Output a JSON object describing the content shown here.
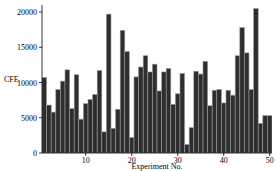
{
  "chart_data": {
    "type": "bar",
    "x_label": "Experiment No.",
    "y_label": "CFE",
    "x": [
      1,
      2,
      3,
      4,
      5,
      6,
      7,
      8,
      9,
      10,
      11,
      12,
      13,
      14,
      15,
      16,
      17,
      18,
      19,
      20,
      21,
      22,
      23,
      24,
      25,
      26,
      27,
      28,
      29,
      30,
      31,
      32,
      33,
      34,
      35,
      36,
      37,
      38,
      39,
      40,
      41,
      42,
      43,
      44,
      45,
      46,
      47,
      48,
      49,
      50
    ],
    "values": [
      10700,
      6800,
      5800,
      9000,
      10200,
      11800,
      6300,
      11100,
      4800,
      7000,
      7600,
      8300,
      11700,
      3000,
      19700,
      3500,
      6200,
      17400,
      14400,
      2200,
      10800,
      12200,
      13800,
      11500,
      12600,
      8800,
      11500,
      12000,
      6900,
      8400,
      11300,
      1200,
      3600,
      11600,
      11200,
      13000,
      6700,
      8900,
      9000,
      7100,
      8900,
      8200,
      13800,
      17800,
      14200,
      9000,
      20500,
      4200,
      5300,
      5300
    ],
    "color": "#2e2e2e",
    "xlim": [
      0.5,
      50.5
    ],
    "xticks": [
      10,
      20,
      30,
      40,
      50
    ],
    "ylim": [
      0,
      21000
    ],
    "yticks": [
      0,
      5000,
      10000,
      15000,
      20000
    ],
    "grid": false
  }
}
